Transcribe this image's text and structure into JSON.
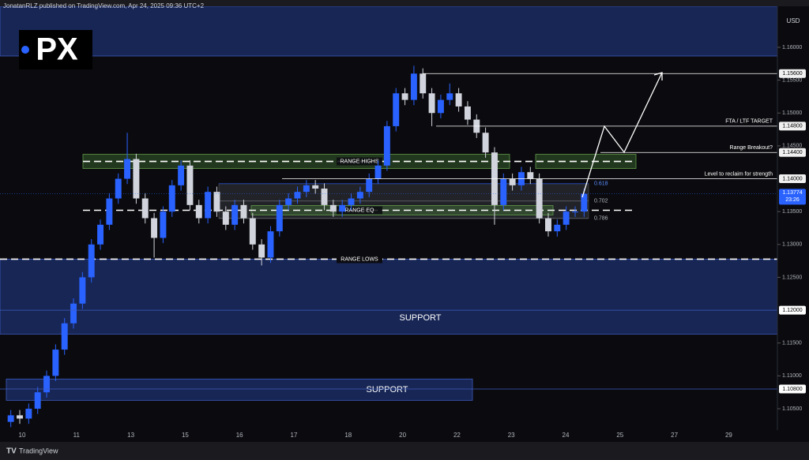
{
  "header": "JonatanRLZ published on TradingView.com, Apr 24, 2025 09:36 UTC+2",
  "footer": "TradingView",
  "logo": "PX",
  "chart_data": {
    "type": "candlestick",
    "currency": "USD",
    "ylim": [
      1.10176,
      1.16624
    ],
    "yticks": [
      {
        "value": 1.105,
        "label": "1.10500"
      },
      {
        "value": 1.11,
        "label": "1.11000"
      },
      {
        "value": 1.115,
        "label": "1.11500"
      },
      {
        "value": 1.125,
        "label": "1.12500"
      },
      {
        "value": 1.13,
        "label": "1.13000"
      },
      {
        "value": 1.135,
        "label": "1.13500"
      },
      {
        "value": 1.145,
        "label": "1.14500"
      },
      {
        "value": 1.15,
        "label": "1.15000"
      },
      {
        "value": 1.155,
        "label": "1.15500"
      },
      {
        "value": 1.16,
        "label": "1.16000"
      }
    ],
    "categories": [
      "10",
      "11",
      "13",
      "15",
      "16",
      "17",
      "18",
      "20",
      "22",
      "23",
      "24",
      "25",
      "27",
      "29"
    ],
    "open": [
      1.103,
      1.104,
      1.1035,
      1.105,
      1.1075,
      1.11,
      1.114,
      1.118,
      1.121,
      1.125,
      1.13,
      1.133,
      1.137,
      1.14,
      1.143,
      1.137,
      1.134,
      1.131,
      1.135,
      1.139,
      1.142,
      1.136,
      1.134,
      1.138,
      1.135,
      1.133,
      1.136,
      1.134,
      1.13,
      1.128,
      1.132,
      1.136,
      1.137,
      1.138,
      1.139,
      1.1385,
      1.136,
      1.135,
      1.136,
      1.137,
      1.138,
      1.14,
      1.142,
      1.148,
      1.153,
      1.152,
      1.156,
      1.153,
      1.15,
      1.152,
      1.153,
      1.151,
      1.149,
      1.147,
      1.144,
      1.136,
      1.14,
      1.139,
      1.141,
      1.14,
      1.134,
      1.132,
      1.133,
      1.135,
      1.135
    ],
    "high": [
      1.1048,
      1.1048,
      1.1058,
      1.1083,
      1.1108,
      1.1148,
      1.1188,
      1.1218,
      1.1258,
      1.1308,
      1.1338,
      1.1378,
      1.1408,
      1.147,
      1.1438,
      1.1378,
      1.1348,
      1.1358,
      1.1398,
      1.1428,
      1.1428,
      1.1368,
      1.1388,
      1.1388,
      1.1358,
      1.1368,
      1.1368,
      1.1348,
      1.1308,
      1.1328,
      1.1368,
      1.1378,
      1.1388,
      1.1398,
      1.1398,
      1.1393,
      1.1368,
      1.1368,
      1.1378,
      1.1388,
      1.1408,
      1.1428,
      1.1488,
      1.1538,
      1.1538,
      1.1572,
      1.1568,
      1.1538,
      1.1528,
      1.1545,
      1.1538,
      1.1518,
      1.1498,
      1.1478,
      1.1448,
      1.1408,
      1.1408,
      1.1418,
      1.1418,
      1.1408,
      1.1348,
      1.1338,
      1.1358,
      1.1358,
      1.1385
    ],
    "low": [
      1.1022,
      1.1027,
      1.1027,
      1.1042,
      1.1067,
      1.1092,
      1.1132,
      1.1172,
      1.1202,
      1.1242,
      1.1292,
      1.1322,
      1.1362,
      1.1392,
      1.1362,
      1.1332,
      1.128,
      1.1302,
      1.1342,
      1.1382,
      1.1352,
      1.1332,
      1.1332,
      1.1342,
      1.1322,
      1.1322,
      1.1332,
      1.1292,
      1.1268,
      1.1272,
      1.1312,
      1.1352,
      1.1362,
      1.1372,
      1.1377,
      1.1352,
      1.1342,
      1.1342,
      1.1352,
      1.1362,
      1.1372,
      1.1392,
      1.1412,
      1.1472,
      1.1512,
      1.1512,
      1.1522,
      1.148,
      1.1492,
      1.1512,
      1.1502,
      1.1482,
      1.1462,
      1.1432,
      1.133,
      1.1352,
      1.1382,
      1.1382,
      1.1392,
      1.1332,
      1.1312,
      1.1312,
      1.1322,
      1.1342,
      1.1342
    ],
    "close": [
      1.104,
      1.1035,
      1.105,
      1.1075,
      1.11,
      1.114,
      1.118,
      1.121,
      1.125,
      1.13,
      1.133,
      1.137,
      1.14,
      1.143,
      1.137,
      1.134,
      1.131,
      1.135,
      1.139,
      1.142,
      1.136,
      1.134,
      1.138,
      1.135,
      1.133,
      1.136,
      1.134,
      1.13,
      1.128,
      1.132,
      1.136,
      1.137,
      1.138,
      1.139,
      1.1385,
      1.136,
      1.135,
      1.136,
      1.137,
      1.138,
      1.14,
      1.142,
      1.148,
      1.153,
      1.152,
      1.156,
      1.153,
      1.15,
      1.152,
      1.153,
      1.151,
      1.149,
      1.147,
      1.144,
      1.136,
      1.14,
      1.139,
      1.141,
      1.14,
      1.134,
      1.132,
      1.133,
      1.135,
      1.135,
      1.1377
    ],
    "up_color": "#2962ff",
    "down_color": "#d1d4dc",
    "last_price": {
      "value": 1.13774,
      "label": "1.13774"
    },
    "countdown": "23:26",
    "levels": [
      {
        "value": 1.156,
        "label": "1.15600"
      },
      {
        "value": 1.148,
        "label": "1.14800",
        "note": "FTA / LTF TARGET"
      },
      {
        "value": 1.144,
        "label": "1.14400",
        "note": "Range Breakout?"
      },
      {
        "value": 1.14,
        "label": "1.14000",
        "note": "Level to reclaim for strength"
      },
      {
        "value": 1.12,
        "label": "1.12000"
      },
      {
        "value": 1.108,
        "label": "1.10800"
      }
    ],
    "range": [
      {
        "value": 1.14264,
        "label": "RANGE HIGHS"
      },
      {
        "value": 1.1352,
        "label": "RANGE EQ"
      },
      {
        "value": 1.12776,
        "label": "RANGE LOWS"
      }
    ],
    "zones": [
      {
        "from": 1.15868,
        "to": 1.16624
      },
      {
        "from": 1.11636,
        "to": 1.12776,
        "label": "SUPPORT"
      },
      {
        "from": 1.10628,
        "to": 1.10952,
        "label": "SUPPORT"
      }
    ],
    "fib": [
      {
        "value": 0.618,
        "price": 1.13924
      },
      {
        "value": 0.702,
        "price": 1.1366
      },
      {
        "value": 0.786,
        "price": 1.13396
      }
    ]
  }
}
